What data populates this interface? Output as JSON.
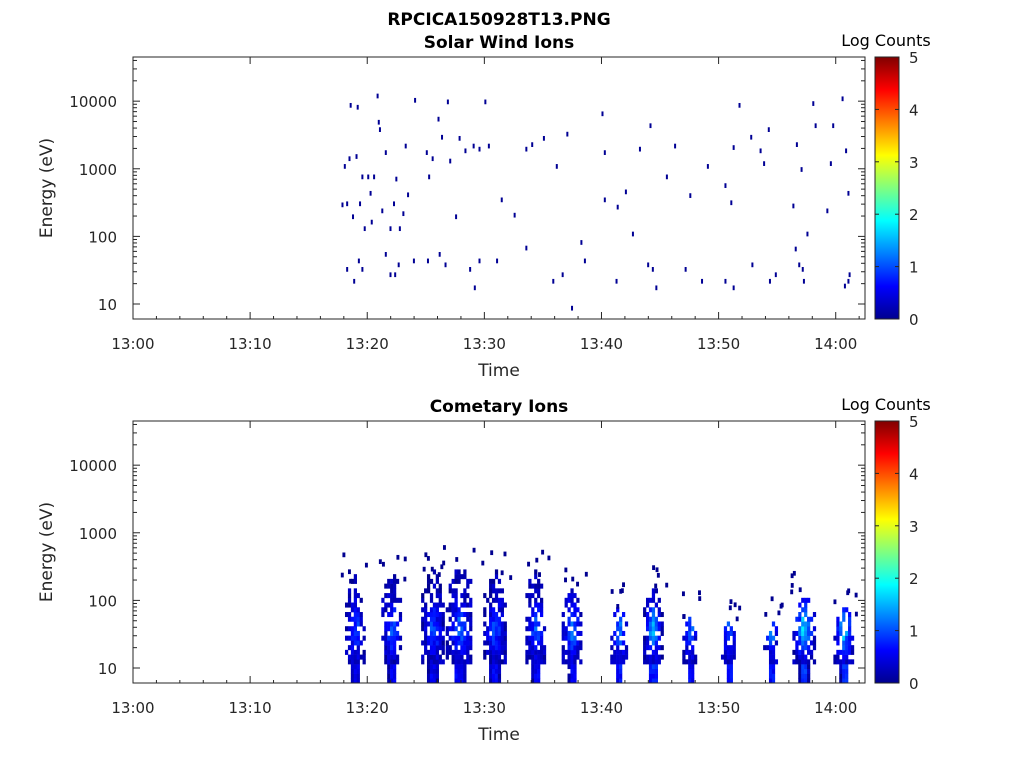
{
  "figure": {
    "title": "RPCICA150928T13.PNG"
  },
  "chart_data": [
    {
      "type": "heatmap",
      "title": "Solar Wind Ions",
      "xlabel": "Time",
      "ylabel": "Energy (eV)",
      "x_ticks": [
        "13:00",
        "13:10",
        "13:20",
        "13:30",
        "13:40",
        "13:50",
        "14:00"
      ],
      "x_range_minutes": [
        0,
        62.5
      ],
      "y_scale": "log",
      "y_ticks": [
        10,
        100,
        1000,
        10000
      ],
      "y_range": [
        6,
        45000
      ],
      "colorbar": {
        "label": "Log Counts",
        "ticks": [
          0,
          1,
          2,
          3,
          4,
          5
        ],
        "range": [
          0,
          5
        ],
        "colormap": "jet"
      },
      "data_start_minute": 17.5,
      "points": [
        [
          17.8,
          270,
          0.1
        ],
        [
          18.0,
          1000,
          0.1
        ],
        [
          18.2,
          280,
          0.1
        ],
        [
          18.4,
          1300,
          0.1
        ],
        [
          18.5,
          8000,
          0.1
        ],
        [
          18.7,
          180,
          0.1
        ],
        [
          19.1,
          7500,
          0.1
        ],
        [
          19.0,
          1400,
          0.1
        ],
        [
          19.3,
          280,
          0.1
        ],
        [
          19.5,
          700,
          0.1
        ],
        [
          19.7,
          120,
          0.1
        ],
        [
          20.0,
          700,
          0.1
        ],
        [
          20.2,
          400,
          0.1
        ],
        [
          20.3,
          150,
          0.1
        ],
        [
          20.5,
          700,
          0.1
        ],
        [
          20.8,
          11000,
          0.1
        ],
        [
          20.9,
          4500,
          0.1
        ],
        [
          21.0,
          3500,
          0.1
        ],
        [
          21.2,
          220,
          0.1
        ],
        [
          21.5,
          1600,
          0.1
        ],
        [
          21.9,
          120,
          0.1
        ],
        [
          22.2,
          280,
          0.1
        ],
        [
          22.4,
          650,
          0.1
        ],
        [
          22.7,
          120,
          0.1
        ],
        [
          23.0,
          200,
          0.1
        ],
        [
          23.2,
          2000,
          0.1
        ],
        [
          23.4,
          380,
          0.1
        ],
        [
          24.0,
          9500,
          0.1
        ],
        [
          25.0,
          1600,
          0.1
        ],
        [
          25.2,
          700,
          0.1
        ],
        [
          25.5,
          1300,
          0.1
        ],
        [
          26.0,
          5000,
          0.1
        ],
        [
          26.3,
          2700,
          0.1
        ],
        [
          26.8,
          9000,
          0.1
        ],
        [
          27.0,
          1200,
          0.1
        ],
        [
          27.5,
          180,
          0.1
        ],
        [
          27.8,
          2600,
          0.1
        ],
        [
          28.3,
          1700,
          0.1
        ],
        [
          29.0,
          2000,
          0.1
        ],
        [
          29.5,
          1800,
          0.1
        ],
        [
          30.0,
          9000,
          0.1
        ],
        [
          30.3,
          2000,
          0.1
        ],
        [
          31.4,
          320,
          0.1
        ],
        [
          32.5,
          190,
          0.1
        ],
        [
          33.5,
          1800,
          0.1
        ],
        [
          34.0,
          2100,
          0.1
        ],
        [
          35.0,
          2600,
          0.1
        ],
        [
          36.1,
          1000,
          0.1
        ],
        [
          37.0,
          3000,
          0.1
        ],
        [
          40.2,
          1600,
          0.1
        ],
        [
          40.2,
          320,
          0.1
        ],
        [
          40.0,
          6000,
          0.1
        ],
        [
          41.3,
          250,
          0.1
        ],
        [
          42.0,
          420,
          0.1
        ],
        [
          42.6,
          100,
          0.1
        ],
        [
          43.2,
          1800,
          0.1
        ],
        [
          44.1,
          4000,
          0.1
        ],
        [
          45.5,
          700,
          0.1
        ],
        [
          46.2,
          2000,
          0.1
        ],
        [
          47.5,
          370,
          0.1
        ],
        [
          49.0,
          1000,
          0.1
        ],
        [
          50.5,
          520,
          0.1
        ],
        [
          51.0,
          290,
          0.1
        ],
        [
          51.2,
          1900,
          0.1
        ],
        [
          51.7,
          8000,
          0.1
        ],
        [
          52.7,
          2700,
          0.1
        ],
        [
          53.5,
          1700,
          0.1
        ],
        [
          53.8,
          1100,
          0.1
        ],
        [
          54.2,
          3500,
          0.1
        ],
        [
          56.3,
          260,
          0.1
        ],
        [
          56.6,
          2100,
          0.1
        ],
        [
          57.0,
          900,
          0.1
        ],
        [
          57.5,
          100,
          0.1
        ],
        [
          58.0,
          8500,
          0.1
        ],
        [
          58.2,
          4000,
          0.1
        ],
        [
          59.2,
          220,
          0.1
        ],
        [
          59.5,
          1100,
          0.1
        ],
        [
          59.7,
          4000,
          0.1
        ],
        [
          60.5,
          10000,
          0.1
        ],
        [
          60.8,
          1700,
          0.1
        ],
        [
          61.0,
          400,
          0.1
        ],
        [
          18.2,
          30,
          0.1
        ],
        [
          18.8,
          20,
          0.1
        ],
        [
          19.2,
          40,
          0.1
        ],
        [
          19.5,
          30,
          0.1
        ],
        [
          21.5,
          50,
          0.1
        ],
        [
          21.9,
          25,
          0.1
        ],
        [
          22.3,
          25,
          0.1
        ],
        [
          22.6,
          35,
          0.1
        ],
        [
          23.9,
          40,
          0.1
        ],
        [
          25.1,
          40,
          0.1
        ],
        [
          26.1,
          50,
          0.1
        ],
        [
          26.6,
          35,
          0.1
        ],
        [
          28.7,
          30,
          0.1
        ],
        [
          29.1,
          16,
          0.1
        ],
        [
          29.5,
          40,
          0.1
        ],
        [
          31.0,
          40,
          0.1
        ],
        [
          33.5,
          62,
          0.1
        ],
        [
          35.8,
          20,
          0.1
        ],
        [
          36.6,
          25,
          0.1
        ],
        [
          37.4,
          8,
          0.1
        ],
        [
          38.2,
          75,
          0.1
        ],
        [
          38.5,
          40,
          0.1
        ],
        [
          41.2,
          20,
          0.1
        ],
        [
          43.9,
          35,
          0.1
        ],
        [
          44.3,
          30,
          0.1
        ],
        [
          44.6,
          16,
          0.1
        ],
        [
          47.1,
          30,
          0.1
        ],
        [
          48.5,
          20,
          0.1
        ],
        [
          50.5,
          20,
          0.1
        ],
        [
          51.2,
          16,
          0.1
        ],
        [
          52.8,
          35,
          0.1
        ],
        [
          54.3,
          20,
          0.1
        ],
        [
          54.8,
          25,
          0.1
        ],
        [
          56.5,
          60,
          0.1
        ],
        [
          56.8,
          35,
          0.1
        ],
        [
          57.1,
          30,
          0.1
        ],
        [
          57.2,
          20,
          0.1
        ],
        [
          60.7,
          17,
          0.1
        ],
        [
          61.0,
          20,
          0.1
        ],
        [
          61.1,
          25,
          0.1
        ]
      ]
    },
    {
      "type": "heatmap",
      "title": "Cometary Ions",
      "xlabel": "Time",
      "ylabel": "Energy (eV)",
      "x_ticks": [
        "13:00",
        "13:10",
        "13:20",
        "13:30",
        "13:40",
        "13:50",
        "14:00"
      ],
      "x_range_minutes": [
        0,
        62.5
      ],
      "y_scale": "log",
      "y_ticks": [
        10,
        100,
        1000,
        10000
      ],
      "y_range": [
        6,
        45000
      ],
      "colorbar": {
        "label": "Log Counts",
        "ticks": [
          0,
          1,
          2,
          3,
          4,
          5
        ],
        "range": [
          0,
          5
        ],
        "colormap": "jet"
      },
      "data_start_minute": 17.5,
      "bursts": [
        {
          "t": 18.9,
          "w": 1.6,
          "emax": 220,
          "peak": 0.9
        },
        {
          "t": 22.0,
          "w": 1.6,
          "emax": 220,
          "peak": 1.0
        },
        {
          "t": 25.5,
          "w": 1.8,
          "emax": 250,
          "peak": 1.0
        },
        {
          "t": 27.8,
          "w": 2.2,
          "emax": 300,
          "peak": 1.1
        },
        {
          "t": 30.8,
          "w": 1.8,
          "emax": 250,
          "peak": 1.0
        },
        {
          "t": 34.3,
          "w": 1.6,
          "emax": 260,
          "peak": 1.1
        },
        {
          "t": 37.4,
          "w": 1.6,
          "emax": 140,
          "peak": 1.2
        },
        {
          "t": 41.4,
          "w": 1.3,
          "emax": 80,
          "peak": 1.3
        },
        {
          "t": 44.3,
          "w": 1.5,
          "emax": 150,
          "peak": 1.6
        },
        {
          "t": 47.5,
          "w": 1.2,
          "emax": 60,
          "peak": 1.2
        },
        {
          "t": 50.8,
          "w": 1.2,
          "emax": 45,
          "peak": 1.2
        },
        {
          "t": 54.4,
          "w": 1.2,
          "emax": 50,
          "peak": 1.3
        },
        {
          "t": 57.2,
          "w": 1.8,
          "emax": 120,
          "peak": 1.9
        },
        {
          "t": 60.6,
          "w": 1.6,
          "emax": 70,
          "peak": 1.8
        }
      ]
    }
  ]
}
